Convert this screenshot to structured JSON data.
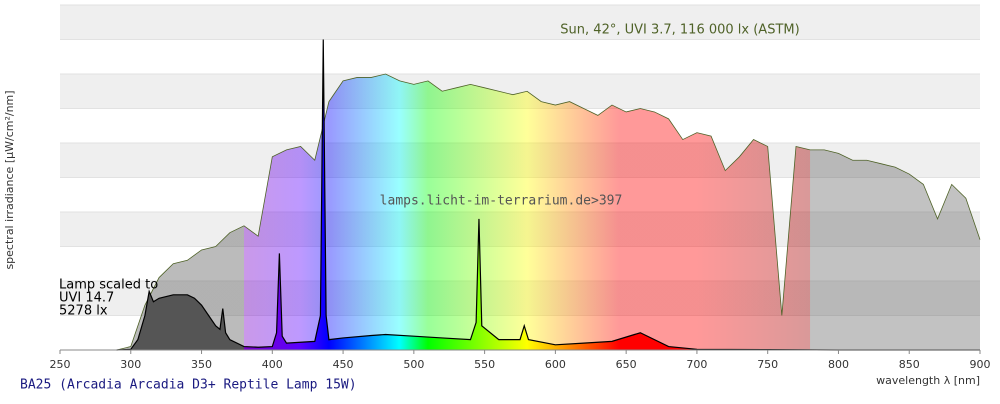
{
  "chart_data": {
    "type": "spectrum",
    "xlabel": "wavelength λ [nm]",
    "ylabel": "spectral irradiance [µW/cm²/nm]",
    "caption": "BA25 (Arcadia Arcadia D3+ Reptile Lamp 15W)",
    "watermark": "lamps.licht-im-terrarium.de>397",
    "lamp_note": [
      "Lamp scaled to",
      "UVI 14.7",
      "5278 lx"
    ],
    "xlim": [
      250,
      900
    ],
    "xticks": [
      250,
      300,
      350,
      400,
      450,
      500,
      550,
      600,
      650,
      700,
      750,
      800,
      850,
      900
    ],
    "ylim": [
      0,
      10
    ],
    "ygrid": [
      0,
      1,
      2,
      3,
      4,
      5,
      6,
      7,
      8,
      9,
      10
    ],
    "series": [
      {
        "name": "Sun, 42°, UVI 3.7, 116 000 lx (ASTM)",
        "color": "#4f6228",
        "x": [
          290,
          300,
          310,
          320,
          330,
          340,
          350,
          360,
          370,
          380,
          390,
          400,
          410,
          420,
          430,
          440,
          450,
          460,
          470,
          480,
          490,
          500,
          510,
          520,
          530,
          540,
          550,
          560,
          570,
          580,
          590,
          600,
          610,
          620,
          630,
          640,
          650,
          660,
          670,
          680,
          690,
          700,
          710,
          720,
          730,
          740,
          750,
          760,
          770,
          780,
          790,
          800,
          810,
          820,
          830,
          840,
          850,
          860,
          870,
          880,
          890,
          900
        ],
        "values": [
          0,
          0.1,
          1.3,
          2.1,
          2.5,
          2.6,
          2.9,
          3.0,
          3.4,
          3.6,
          3.3,
          5.6,
          5.8,
          5.9,
          5.5,
          7.2,
          7.8,
          7.9,
          7.9,
          8.0,
          7.8,
          7.7,
          7.8,
          7.5,
          7.6,
          7.7,
          7.6,
          7.5,
          7.4,
          7.5,
          7.2,
          7.1,
          7.2,
          7.0,
          6.8,
          7.1,
          6.9,
          7.0,
          6.9,
          6.7,
          6.1,
          6.3,
          6.2,
          5.2,
          5.6,
          6.1,
          5.9,
          1.0,
          5.9,
          5.8,
          5.8,
          5.7,
          5.5,
          5.5,
          5.4,
          5.3,
          5.1,
          4.8,
          3.8,
          4.8,
          4.4,
          3.2
        ]
      },
      {
        "color": "#000000",
        "x": [
          290,
          300,
          305,
          310,
          313,
          316,
          320,
          330,
          340,
          345,
          350,
          355,
          360,
          363,
          365,
          367,
          370,
          380,
          390,
          400,
          403,
          405,
          407,
          410,
          430,
          434,
          436,
          438,
          440,
          450,
          470,
          480,
          500,
          520,
          540,
          544,
          546,
          548,
          560,
          575,
          578,
          581,
          600,
          620,
          640,
          660,
          680,
          700,
          750,
          800,
          900
        ],
        "values": [
          0,
          0.02,
          0.3,
          1.0,
          1.7,
          1.4,
          1.5,
          1.6,
          1.6,
          1.5,
          1.3,
          1.0,
          0.7,
          0.6,
          1.2,
          0.5,
          0.3,
          0.1,
          0.08,
          0.1,
          0.5,
          2.8,
          0.4,
          0.2,
          0.25,
          1.0,
          9.0,
          1.0,
          0.3,
          0.35,
          0.42,
          0.45,
          0.4,
          0.35,
          0.3,
          0.8,
          3.8,
          0.7,
          0.3,
          0.3,
          0.7,
          0.3,
          0.15,
          0.2,
          0.25,
          0.5,
          0.1,
          0.02,
          0.01,
          0,
          0
        ]
      }
    ]
  }
}
